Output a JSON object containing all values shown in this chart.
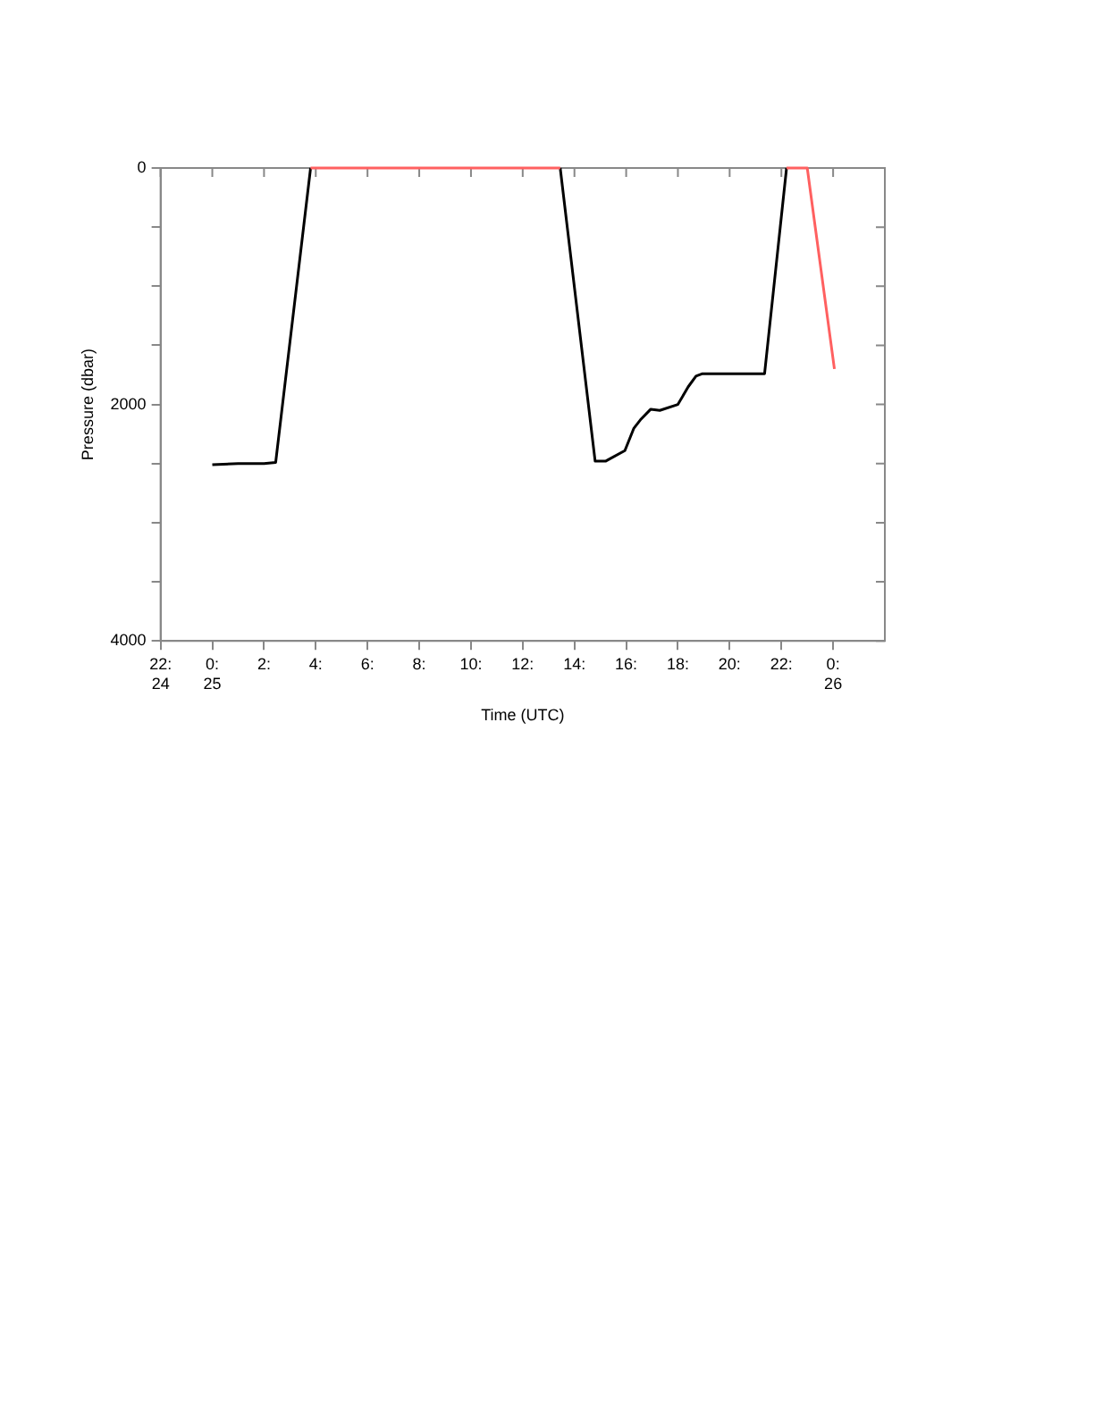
{
  "chart_data": {
    "type": "line",
    "xlabel": "Time (UTC)",
    "ylabel": "Pressure (dbar)",
    "xlim": [
      -2,
      26
    ],
    "ylim": [
      4000,
      0
    ],
    "xticks": [
      {
        "value": -2,
        "label": "22:\n24"
      },
      {
        "value": 0,
        "label": "0:\n25"
      },
      {
        "value": 2,
        "label": "2:"
      },
      {
        "value": 4,
        "label": "4:"
      },
      {
        "value": 6,
        "label": "6:"
      },
      {
        "value": 8,
        "label": "8:"
      },
      {
        "value": 10,
        "label": "10:"
      },
      {
        "value": 12,
        "label": "12:"
      },
      {
        "value": 14,
        "label": "14:"
      },
      {
        "value": 16,
        "label": "16:"
      },
      {
        "value": 18,
        "label": "18:"
      },
      {
        "value": 20,
        "label": "20:"
      },
      {
        "value": 22,
        "label": "22:"
      },
      {
        "value": 24,
        "label": "0:\n26"
      }
    ],
    "yticks": [
      0,
      {
        "value": 500,
        "label": null
      },
      {
        "value": 1000,
        "label": null
      },
      {
        "value": 1500,
        "label": null
      },
      2000,
      {
        "value": 2500,
        "label": null
      },
      {
        "value": 3000,
        "label": null
      },
      {
        "value": 3500,
        "label": null
      },
      4000
    ],
    "grid": false,
    "legend": false,
    "marker": "none",
    "line_style": "solid",
    "series": [
      {
        "color": "#000000",
        "x": [
          0,
          1.0,
          2.0,
          2.45,
          3.8,
          8.6,
          13.45,
          14.8,
          15.2,
          15.95,
          16.3,
          16.55,
          16.95,
          17.3,
          18.0,
          18.4,
          18.7,
          18.95,
          21.35,
          22.2
        ],
        "values": [
          2510,
          2500,
          2500,
          2490,
          0,
          null,
          0,
          2480,
          2480,
          2390,
          2200,
          2130,
          2040,
          2050,
          2000,
          1850,
          1760,
          1740,
          1740,
          0
        ]
      },
      {
        "color": "#ff6060",
        "x": [
          3.8,
          13.45,
          17.8,
          22.2,
          23.0,
          24.05
        ],
        "values": [
          0,
          0,
          null,
          0,
          0,
          1700
        ]
      }
    ]
  }
}
